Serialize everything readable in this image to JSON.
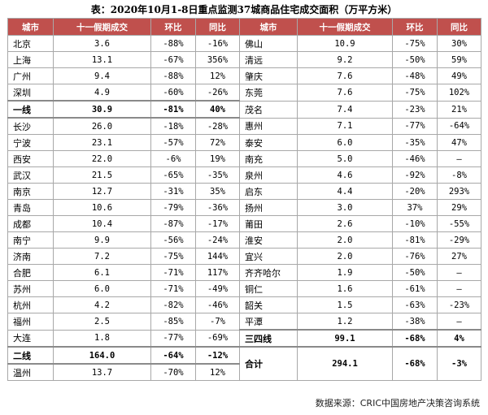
{
  "title": "表：2020年10月1-8日重点监测37城商品住宅成交面积（万平方米）",
  "headers": [
    "城市",
    "十一假期成交",
    "环比",
    "同比"
  ],
  "left_rows": [
    {
      "city": "北京",
      "area": "3.6",
      "mom": "-88%",
      "yoy": "-16%"
    },
    {
      "city": "上海",
      "area": "13.1",
      "mom": "-67%",
      "yoy": "356%"
    },
    {
      "city": "广州",
      "area": "9.4",
      "mom": "-88%",
      "yoy": "12%"
    },
    {
      "city": "深圳",
      "area": "4.9",
      "mom": "-60%",
      "yoy": "-26%"
    },
    {
      "city": "一线",
      "area": "30.9",
      "mom": "-81%",
      "yoy": "40%"
    },
    {
      "city": "长沙",
      "area": "26.0",
      "mom": "-18%",
      "yoy": "-28%"
    },
    {
      "city": "宁波",
      "area": "23.1",
      "mom": "-57%",
      "yoy": "72%"
    },
    {
      "city": "西安",
      "area": "22.0",
      "mom": "-6%",
      "yoy": "19%"
    },
    {
      "city": "武汉",
      "area": "21.5",
      "mom": "-65%",
      "yoy": "-35%"
    },
    {
      "city": "南京",
      "area": "12.7",
      "mom": "-31%",
      "yoy": "35%"
    },
    {
      "city": "青岛",
      "area": "10.6",
      "mom": "-79%",
      "yoy": "-36%"
    },
    {
      "city": "成都",
      "area": "10.4",
      "mom": "-87%",
      "yoy": "-17%"
    },
    {
      "city": "南宁",
      "area": "9.9",
      "mom": "-56%",
      "yoy": "-24%"
    },
    {
      "city": "济南",
      "area": "7.2",
      "mom": "-75%",
      "yoy": "144%"
    },
    {
      "city": "合肥",
      "area": "6.1",
      "mom": "-71%",
      "yoy": "117%"
    },
    {
      "city": "苏州",
      "area": "6.0",
      "mom": "-71%",
      "yoy": "-49%"
    },
    {
      "city": "杭州",
      "area": "4.2",
      "mom": "-82%",
      "yoy": "-46%"
    },
    {
      "city": "福州",
      "area": "2.5",
      "mom": "-85%",
      "yoy": "-7%"
    },
    {
      "city": "大连",
      "area": "1.8",
      "mom": "-77%",
      "yoy": "-69%"
    },
    {
      "city": "二线",
      "area": "164.0",
      "mom": "-64%",
      "yoy": "-12%"
    },
    {
      "city": "温州",
      "area": "13.7",
      "mom": "-70%",
      "yoy": "12%"
    }
  ],
  "right_rows": [
    {
      "city": "佛山",
      "area": "10.9",
      "mom": "-75%",
      "yoy": "30%"
    },
    {
      "city": "清远",
      "area": "9.2",
      "mom": "-50%",
      "yoy": "59%"
    },
    {
      "city": "肇庆",
      "area": "7.6",
      "mom": "-48%",
      "yoy": "49%"
    },
    {
      "city": "东莞",
      "area": "7.6",
      "mom": "-75%",
      "yoy": "102%"
    },
    {
      "city": "茂名",
      "area": "7.4",
      "mom": "-23%",
      "yoy": "21%"
    },
    {
      "city": "惠州",
      "area": "7.1",
      "mom": "-77%",
      "yoy": "-64%"
    },
    {
      "city": "泰安",
      "area": "6.0",
      "mom": "-35%",
      "yoy": "47%"
    },
    {
      "city": "南充",
      "area": "5.0",
      "mom": "-46%",
      "yoy": "—"
    },
    {
      "city": "泉州",
      "area": "4.6",
      "mom": "-92%",
      "yoy": "-8%"
    },
    {
      "city": "启东",
      "area": "4.4",
      "mom": "-20%",
      "yoy": "293%"
    },
    {
      "city": "扬州",
      "area": "3.0",
      "mom": "37%",
      "yoy": "29%"
    },
    {
      "city": "莆田",
      "area": "2.6",
      "mom": "-10%",
      "yoy": "-55%"
    },
    {
      "city": "淮安",
      "area": "2.0",
      "mom": "-81%",
      "yoy": "-29%"
    },
    {
      "city": "宜兴",
      "area": "2.0",
      "mom": "-76%",
      "yoy": "27%"
    },
    {
      "city": "齐齐哈尔",
      "area": "1.9",
      "mom": "-50%",
      "yoy": "—"
    },
    {
      "city": "铜仁",
      "area": "1.6",
      "mom": "-61%",
      "yoy": "—"
    },
    {
      "city": "韶关",
      "area": "1.5",
      "mom": "-63%",
      "yoy": "-23%"
    },
    {
      "city": "平潭",
      "area": "1.2",
      "mom": "-38%",
      "yoy": "—"
    },
    {
      "city": "三四线",
      "area": "99.1",
      "mom": "-68%",
      "yoy": "4%"
    },
    {
      "city": "合计",
      "area": "294.1",
      "mom": "-68%",
      "yoy": "-3%"
    }
  ],
  "source": "数据来源：CRIC中国房地产决策咨询系统"
}
